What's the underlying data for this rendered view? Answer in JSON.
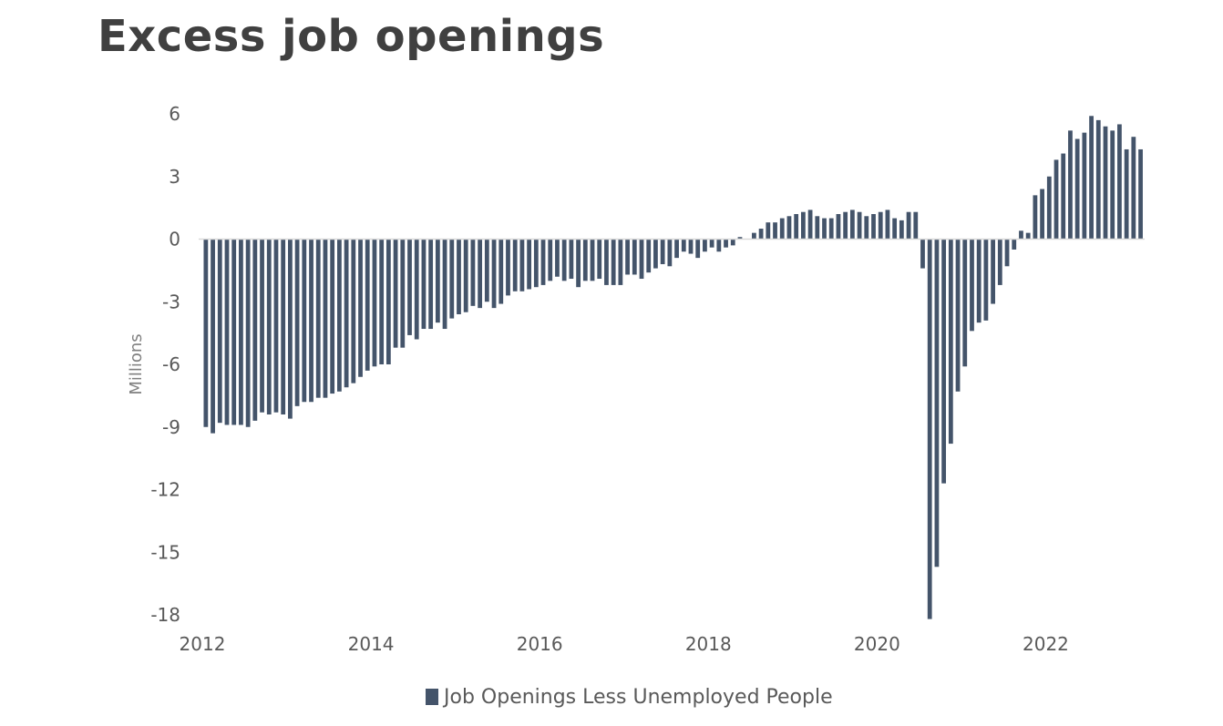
{
  "title": "Excess job openings",
  "chart_data": {
    "type": "bar",
    "xlabel": "",
    "ylabel": "Millions",
    "ylim": [
      -18,
      6
    ],
    "yticks": [
      6,
      3,
      0,
      -3,
      -6,
      -9,
      -12,
      -15,
      -18
    ],
    "xticks": [
      2012,
      2014,
      2016,
      2018,
      2020,
      2022
    ],
    "xlim": [
      2012,
      2023.0
    ],
    "grid": false,
    "legend_position": "bottom",
    "colors": {
      "bar": "#44546a",
      "axis": "#d9d9d9"
    },
    "series": [
      {
        "name": "Job Openings Less Unemployed People",
        "x_start": 2012.0,
        "x_step": 0.0833333,
        "values": [
          -9.0,
          -9.3,
          -8.8,
          -8.9,
          -8.9,
          -8.9,
          -9.0,
          -8.7,
          -8.3,
          -8.4,
          -8.3,
          -8.4,
          -8.6,
          -8.0,
          -7.8,
          -7.8,
          -7.6,
          -7.6,
          -7.4,
          -7.3,
          -7.1,
          -6.9,
          -6.6,
          -6.3,
          -6.1,
          -6.0,
          -6.0,
          -5.2,
          -5.2,
          -4.6,
          -4.8,
          -4.3,
          -4.3,
          -4.0,
          -4.3,
          -3.8,
          -3.6,
          -3.5,
          -3.2,
          -3.3,
          -3.0,
          -3.3,
          -3.1,
          -2.7,
          -2.5,
          -2.5,
          -2.4,
          -2.3,
          -2.2,
          -2.0,
          -1.8,
          -2.0,
          -1.9,
          -2.3,
          -2.0,
          -2.0,
          -1.9,
          -2.2,
          -2.2,
          -2.2,
          -1.7,
          -1.7,
          -1.9,
          -1.6,
          -1.4,
          -1.2,
          -1.3,
          -0.9,
          -0.6,
          -0.7,
          -0.9,
          -0.6,
          -0.4,
          -0.6,
          -0.4,
          -0.3,
          0.1,
          0.0,
          0.3,
          0.5,
          0.8,
          0.8,
          1.0,
          1.1,
          1.2,
          1.3,
          1.4,
          1.1,
          1.0,
          1.0,
          1.2,
          1.3,
          1.4,
          1.3,
          1.1,
          1.2,
          1.3,
          1.4,
          1.0,
          0.9,
          1.3,
          1.3,
          -1.4,
          -18.2,
          -15.7,
          -11.7,
          -9.8,
          -7.3,
          -6.1,
          -4.4,
          -4.0,
          -3.9,
          -3.1,
          -2.2,
          -1.3,
          -0.5,
          0.4,
          0.3,
          2.1,
          2.4,
          3.0,
          3.8,
          4.1,
          5.2,
          4.8,
          5.1,
          5.9,
          5.7,
          5.4,
          5.2,
          5.5,
          4.3,
          4.9,
          4.3
        ]
      }
    ]
  }
}
